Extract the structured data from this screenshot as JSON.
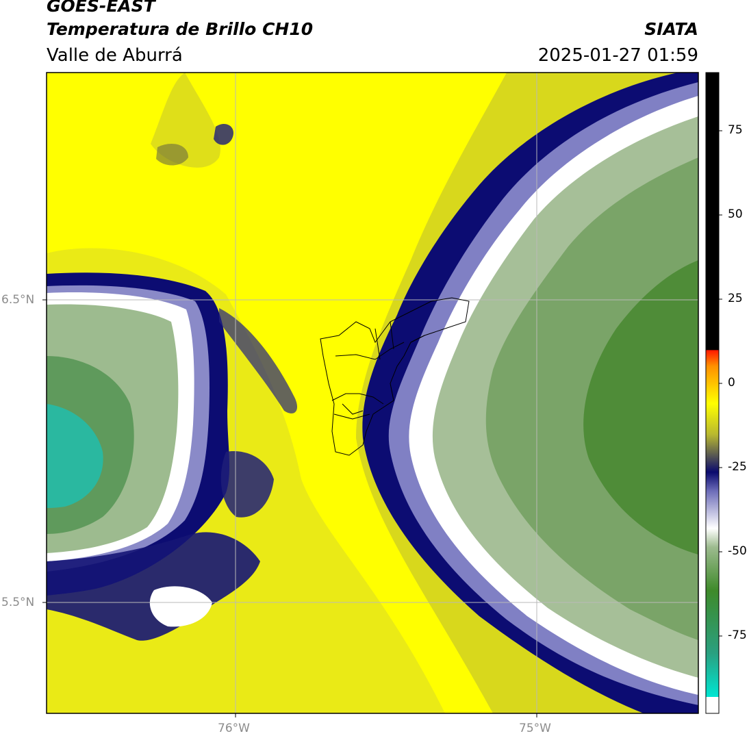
{
  "header": {
    "satellite": "GOES-EAST",
    "product": "Temperatura de Brillo CH10",
    "region": "Valle de Aburrá",
    "organization": "SIATA",
    "datetime": "2025-01-27 01:59"
  },
  "axes": {
    "y_ticks": [
      "6.5°N",
      "5.5°N"
    ],
    "x_ticks": [
      "76°W",
      "75°W"
    ]
  },
  "colorbar": {
    "labels": [
      "75",
      "50",
      "25",
      "0",
      "-25",
      "-50",
      "-75"
    ],
    "colors": {
      "hot": "#000000",
      "red": "#ff1a00",
      "orange": "#ff9000",
      "yellow": "#ffff00",
      "dark_blue": "#0a0a6e",
      "white": "#ffffff",
      "green": "#3e8a2a",
      "teal": "#00e6d2"
    }
  },
  "map_colors": {
    "dry_yellow": "#ffff00",
    "olive_yellow": "#c8c828",
    "moist_navy": "#0c0c72",
    "cloud_white": "#ffffff",
    "cloud_green": "#6c9a5c",
    "cloud_teal": "#2ab8a0"
  }
}
